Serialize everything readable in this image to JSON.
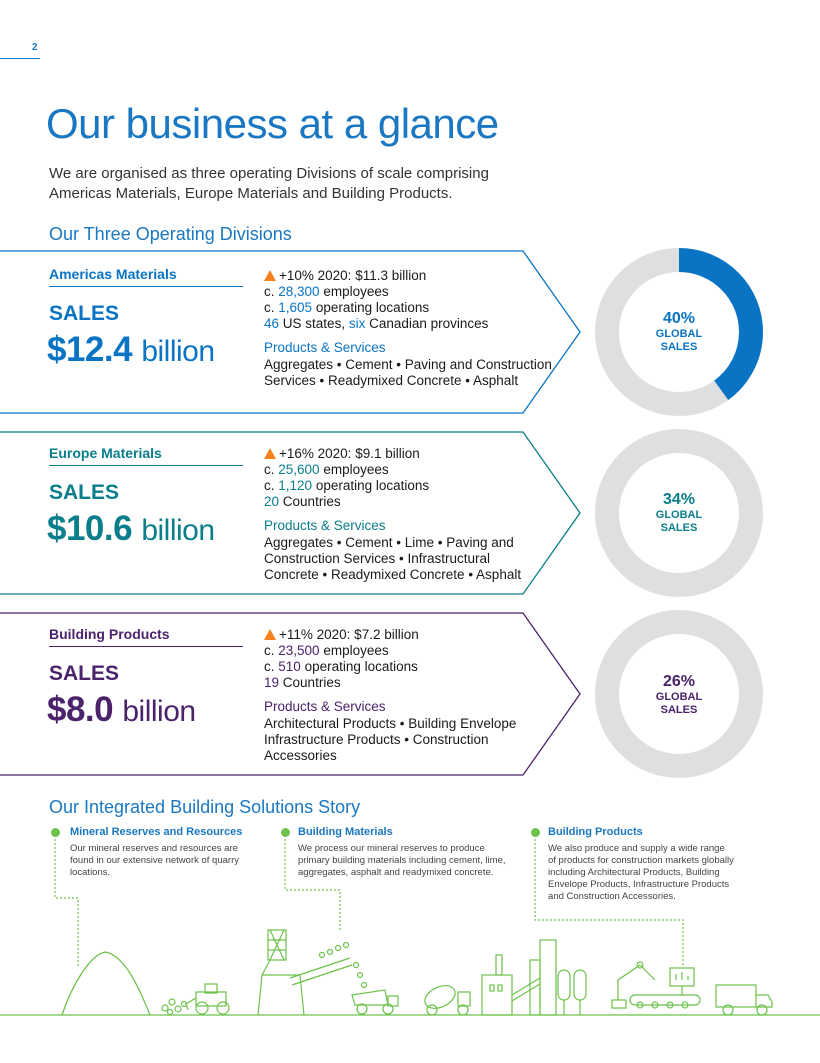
{
  "page_number": "2",
  "title": "Our business at a glance",
  "intro": "We are organised as three operating Divisions of scale comprising Americas Materials, Europe Materials and Building Products.",
  "divisions_heading": "Our Three Operating Divisions",
  "divisions": [
    {
      "name": "Americas Materials",
      "sales_label": "SALES",
      "sales_amount": "$12.4",
      "sales_unit": "billion",
      "growth": "+10% 2020: $11.3 billion",
      "employees_num": "28,300",
      "employees_text": "employees",
      "locations_num": "1,605",
      "locations_text": "operating locations",
      "geo_num": "46",
      "geo_text_1": "US states,",
      "geo_num_2": "six",
      "geo_text_2": "Canadian provinces",
      "ps_head": "Products & Services",
      "ps_lines": [
        "Aggregates • Cement • Paving and Construction",
        "Services • Readymixed Concrete • Asphalt"
      ],
      "global_pct": "40%",
      "global_value": 40,
      "global_line1": "GLOBAL",
      "global_line2": "SALES",
      "color": "#0a74c4"
    },
    {
      "name": "Europe Materials",
      "sales_label": "SALES",
      "sales_amount": "$10.6",
      "sales_unit": "billion",
      "growth": "+16% 2020: $9.1 billion",
      "employees_num": "25,600",
      "employees_text": "employees",
      "locations_num": "1,120",
      "locations_text": "operating locations",
      "geo_num": "20",
      "geo_text_1": "Countries",
      "ps_head": "Products & Services",
      "ps_lines": [
        "Aggregates • Cement • Lime • Paving and",
        "Construction Services • Infrastructural",
        "Concrete • Readymixed Concrete • Asphalt"
      ],
      "global_pct": "34%",
      "global_value": 34,
      "global_line1": "GLOBAL",
      "global_line2": "SALES",
      "color": "#0a7e8a"
    },
    {
      "name": "Building Products",
      "sales_label": "SALES",
      "sales_amount": "$8.0",
      "sales_unit": "billion",
      "growth": "+11% 2020: $7.2 billion",
      "employees_num": "23,500",
      "employees_text": "employees",
      "locations_num": "510",
      "locations_text": "operating locations",
      "geo_num": "19",
      "geo_text_1": "Countries",
      "ps_head": "Products & Services",
      "ps_lines": [
        "Architectural Products • Building Envelope",
        "Infrastructure Products • Construction",
        "Accessories"
      ],
      "global_pct": "26%",
      "global_value": 26,
      "global_line1": "GLOBAL",
      "global_line2": "SALES",
      "color": "#4b236b"
    }
  ],
  "story_heading": "Our Integrated Building Solutions Story",
  "story": [
    {
      "head": "Mineral Reserves and Resources",
      "lines": [
        "Our mineral reserves and resources are",
        "found in our extensive network of quarry",
        "locations."
      ]
    },
    {
      "head": "Building Materials",
      "lines": [
        "We process our mineral reserves to produce",
        "primary building materials including cement, lime,",
        "aggregates, asphalt and readymixed concrete."
      ]
    },
    {
      "head": "Building Products",
      "lines": [
        "We also produce and supply a wide range",
        "of products for construction markets globally",
        "including Architectural Products, Building",
        "Envelope Products, Infrastructure Products",
        "and Construction Accessories."
      ]
    }
  ],
  "colors": {
    "accent": "#1a78c2",
    "growth": "#f5821f",
    "story": "#6cc24a",
    "track": "#dedfe1"
  }
}
